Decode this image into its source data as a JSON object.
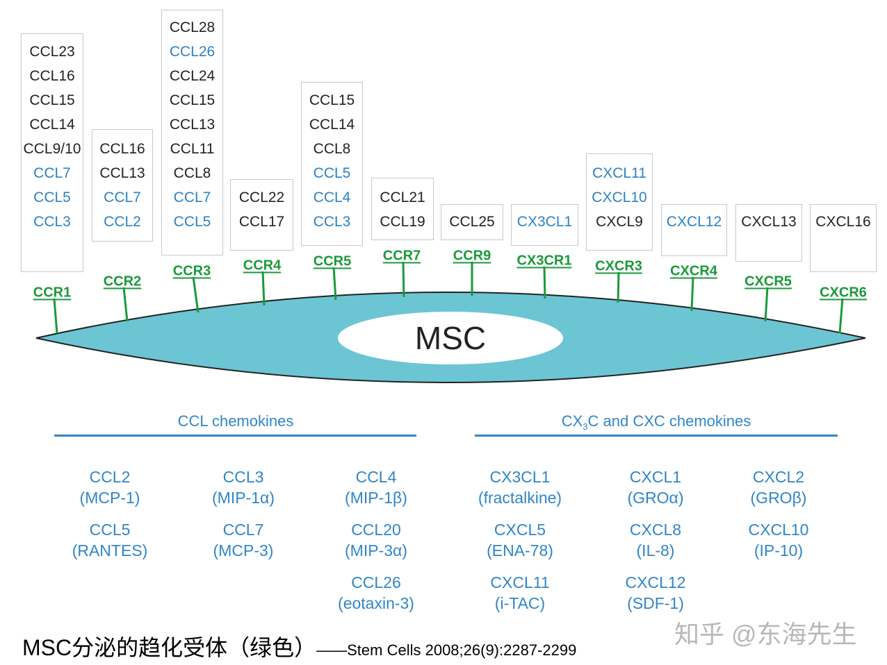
{
  "colors": {
    "receptor": "#1a9a3a",
    "ligand_blue": "#2b82c4",
    "ligand_black": "#222222",
    "cell": "#6cc5d3",
    "heading": "#2f86c8"
  },
  "cell_label": "MSC",
  "receptors": [
    {
      "name": "CCR1",
      "ligands": [
        {
          "t": "CCL23",
          "c": "k"
        },
        {
          "t": "CCL16",
          "c": "k"
        },
        {
          "t": "CCL15",
          "c": "k"
        },
        {
          "t": "CCL14",
          "c": "k"
        },
        {
          "t": "CCL9/10",
          "c": "k"
        },
        {
          "t": "CCL7",
          "c": "b"
        },
        {
          "t": "CCL5",
          "c": "b"
        },
        {
          "t": "CCL3",
          "c": "b"
        }
      ]
    },
    {
      "name": "CCR2",
      "ligands": [
        {
          "t": "CCL16",
          "c": "k"
        },
        {
          "t": "CCL13",
          "c": "k"
        },
        {
          "t": "CCL7",
          "c": "b"
        },
        {
          "t": "CCL2",
          "c": "b"
        }
      ]
    },
    {
      "name": "CCR3",
      "ligands": [
        {
          "t": "CCL28",
          "c": "k"
        },
        {
          "t": "CCL26",
          "c": "b"
        },
        {
          "t": "CCL24",
          "c": "k"
        },
        {
          "t": "CCL15",
          "c": "k"
        },
        {
          "t": "CCL13",
          "c": "k"
        },
        {
          "t": "CCL11",
          "c": "k"
        },
        {
          "t": "CCL8",
          "c": "k"
        },
        {
          "t": "CCL7",
          "c": "b"
        },
        {
          "t": "CCL5",
          "c": "b"
        }
      ]
    },
    {
      "name": "CCR4",
      "ligands": [
        {
          "t": "CCL22",
          "c": "k"
        },
        {
          "t": "CCL17",
          "c": "k"
        }
      ]
    },
    {
      "name": "CCR5",
      "ligands": [
        {
          "t": "CCL15",
          "c": "k"
        },
        {
          "t": "CCL14",
          "c": "k"
        },
        {
          "t": "CCL8",
          "c": "k"
        },
        {
          "t": "CCL5",
          "c": "b"
        },
        {
          "t": "CCL4",
          "c": "b"
        },
        {
          "t": "CCL3",
          "c": "b"
        }
      ]
    },
    {
      "name": "CCR7",
      "ligands": [
        {
          "t": "CCL21",
          "c": "k"
        },
        {
          "t": "CCL19",
          "c": "k"
        }
      ]
    },
    {
      "name": "CCR9",
      "ligands": [
        {
          "t": "CCL25",
          "c": "k"
        }
      ]
    },
    {
      "name": "CX3CR1",
      "ligands": [
        {
          "t": "CX3CL1",
          "c": "b"
        }
      ]
    },
    {
      "name": "CXCR3",
      "ligands": [
        {
          "t": "CXCL11",
          "c": "b"
        },
        {
          "t": "CXCL10",
          "c": "b"
        },
        {
          "t": "CXCL9",
          "c": "k"
        }
      ]
    },
    {
      "name": "CXCR4",
      "ligands": [
        {
          "t": "CXCL12",
          "c": "b"
        }
      ]
    },
    {
      "name": "CXCR5",
      "ligands": [
        {
          "t": "CXCL13",
          "c": "k"
        }
      ]
    },
    {
      "name": "CXCR6",
      "ligands": [
        {
          "t": "CXCL16",
          "c": "k"
        }
      ]
    }
  ],
  "ccl_section": {
    "heading": "CCL chemokines",
    "items": [
      {
        "name": "CCL2",
        "alias": "(MCP-1)"
      },
      {
        "name": "CCL3",
        "alias": "(MIP-1α)"
      },
      {
        "name": "CCL4",
        "alias": "(MIP-1β)"
      },
      {
        "name": "CCL5",
        "alias": "(RANTES)"
      },
      {
        "name": "CCL7",
        "alias": "(MCP-3)"
      },
      {
        "name": "CCL20",
        "alias": "(MIP-3α)"
      },
      {
        "name": "CCL26",
        "alias": "(eotaxin-3)"
      }
    ]
  },
  "cxc_section": {
    "heading_pre": "CX",
    "heading_sub": "3",
    "heading_post": "C and CXC chemokines",
    "items": [
      {
        "name": "CX3CL1",
        "alias": "(fractalkine)"
      },
      {
        "name": "CXCL1",
        "alias": "(GROα)"
      },
      {
        "name": "CXCL2",
        "alias": "(GROβ)"
      },
      {
        "name": "CXCL5",
        "alias": "(ENA-78)"
      },
      {
        "name": "CXCL8",
        "alias": "(IL-8)"
      },
      {
        "name": "CXCL10",
        "alias": "(IP-10)"
      },
      {
        "name": "CXCL11",
        "alias": "(i-TAC)"
      },
      {
        "name": "CXCL12",
        "alias": "(SDF-1)"
      }
    ]
  },
  "caption": {
    "main": "MSC分泌的趋化受体（绿色）",
    "citation": "——Stem Cells 2008;26(9):2287-2299"
  },
  "watermark": "知乎 @东海先生"
}
